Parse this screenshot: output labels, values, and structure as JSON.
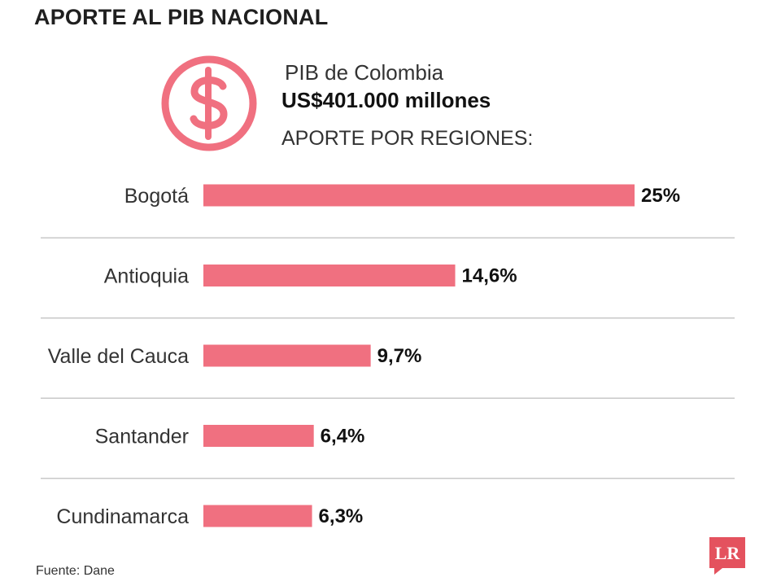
{
  "title": "APORTE AL PIB NACIONAL",
  "header": {
    "line1": "PIB de Colombia",
    "line2": "US$401.000 millones",
    "line3": "APORTE POR REGIONES:",
    "icon": "dollar-circle-icon"
  },
  "chart_data": {
    "type": "bar",
    "orientation": "horizontal",
    "categories": [
      "Bogotá",
      "Antioquia",
      "Valle del Cauca",
      "Santander",
      "Cundinamarca"
    ],
    "values": [
      25,
      14.6,
      9.7,
      6.4,
      6.3
    ],
    "value_labels": [
      "25%",
      "14,6%",
      "9,7%",
      "6,4%",
      "6,3%"
    ],
    "unit": "%",
    "grid": false,
    "legend": "none"
  },
  "source": "Fuente: Dane",
  "logo": {
    "text": "LR",
    "icon": "lr-logo-icon"
  },
  "colors": {
    "bar": "#f07080",
    "icon": "#f07080",
    "divider": "#c8c8c8",
    "logo": "#e4525e",
    "text": "#2b2b2b"
  }
}
